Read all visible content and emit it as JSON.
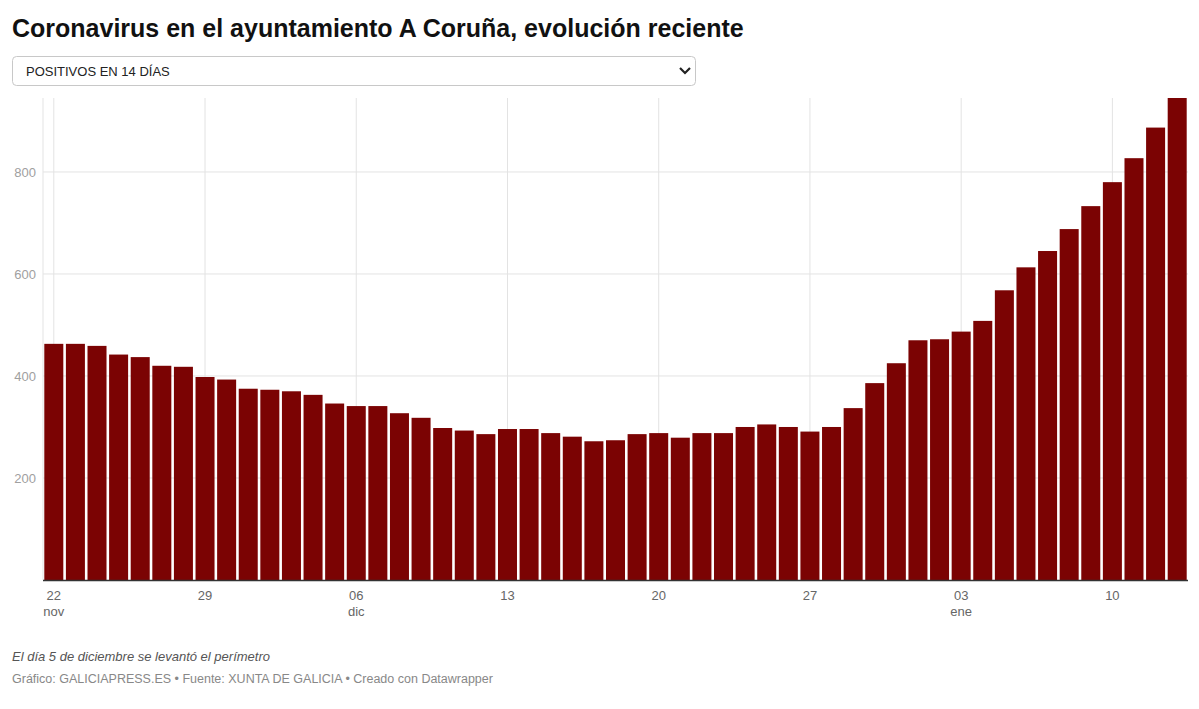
{
  "chart_data": {
    "type": "bar",
    "title": "Coronavirus en el ayuntamiento A Coruña, evolución reciente",
    "dropdown": "POSITIVOS EN 14 DÍAS",
    "annotation": "El día 5 de diciembre se levantó el perímetro",
    "source": "Gráfico: GALICIAPRESS.ES • Fuente: XUNTA DE GALICIA • Creado con Datawrapper",
    "categories": [
      "22 nov",
      null,
      null,
      null,
      null,
      null,
      null,
      "29",
      null,
      null,
      null,
      null,
      null,
      null,
      "06 dic",
      null,
      null,
      null,
      null,
      null,
      null,
      "13",
      null,
      null,
      null,
      null,
      null,
      null,
      "20",
      null,
      null,
      null,
      null,
      null,
      null,
      "27",
      null,
      null,
      null,
      null,
      null,
      null,
      "03 ene",
      null,
      null,
      null,
      null,
      null,
      null,
      "10",
      null,
      null,
      null
    ],
    "values": [
      463,
      463,
      459,
      442,
      437,
      420,
      418,
      398,
      393,
      375,
      373,
      370,
      363,
      346,
      341,
      341,
      327,
      318,
      298,
      293,
      286,
      296,
      296,
      288,
      281,
      272,
      274,
      286,
      288,
      279,
      288,
      288,
      300,
      305,
      300,
      291,
      300,
      337,
      386,
      425,
      470,
      472,
      487,
      508,
      568,
      613,
      645,
      688,
      733,
      780,
      827,
      887,
      945
    ],
    "color": "#7b0303",
    "ylim": [
      0,
      945
    ],
    "yticks": [
      200,
      400,
      600,
      800
    ],
    "grid": true
  }
}
